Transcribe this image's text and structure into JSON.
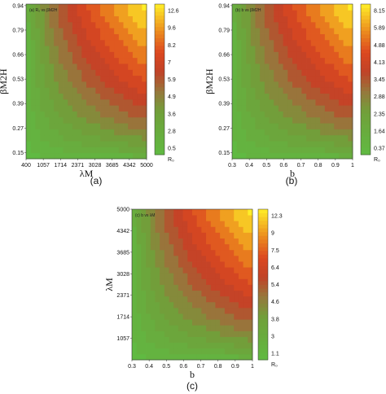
{
  "chart_data": [
    {
      "type": "heatmap",
      "panel_label": "(a)",
      "annotation": "(a) R₀ vs βM2H",
      "xlabel": "λM",
      "ylabel": "βM2H",
      "x_ticks": [
        "400",
        "1057",
        "1714",
        "2371",
        "3028",
        "3685",
        "4342",
        "5000"
      ],
      "y_ticks": [
        "0.15",
        "0.27",
        "0.39",
        "0.53",
        "0.66",
        "0.79",
        "0.94"
      ],
      "xlim": [
        400,
        5000
      ],
      "ylim": [
        0.15,
        0.94
      ],
      "colorbar_label": "R₀",
      "colorbar_ticks": [
        "0.5",
        "2.8",
        "3.6",
        "4.9",
        "5.9",
        "7",
        "8.2",
        "9.6",
        "12.6"
      ]
    },
    {
      "type": "heatmap",
      "panel_label": "(b)",
      "annotation": "(b) b vs βM2H",
      "xlabel": "b",
      "ylabel": "βM2H",
      "x_ticks": [
        "0.3",
        "0.4",
        "0.5",
        "0.6",
        "0.7",
        "0.8",
        "0.9",
        "1"
      ],
      "y_ticks": [
        "0.15",
        "0.27",
        "0.39",
        "0.53",
        "0.66",
        "0.79",
        "0.94"
      ],
      "xlim": [
        0.3,
        1
      ],
      "ylim": [
        0.15,
        0.94
      ],
      "colorbar_label": "R₀",
      "colorbar_ticks": [
        "0.37",
        "1.64",
        "2.35",
        "2.88",
        "3.45",
        "4.13",
        "4.88",
        "5.89",
        "8.15"
      ]
    },
    {
      "type": "heatmap",
      "panel_label": "(c)",
      "annotation": "(c) b vs λM",
      "xlabel": "b",
      "ylabel": "λM",
      "x_ticks": [
        "0.3",
        "0.4",
        "0.5",
        "0.6",
        "0.7",
        "0.8",
        "0.9",
        "1"
      ],
      "y_ticks": [
        "1057",
        "1714",
        "2371",
        "3028",
        "3685",
        "4342",
        "5000"
      ],
      "xlim": [
        0.3,
        1
      ],
      "ylim": [
        400,
        5000
      ],
      "colorbar_label": "R₀",
      "colorbar_ticks": [
        "1.1",
        "3",
        "3.8",
        "4.6",
        "5.4",
        "6.4",
        "7.5",
        "9",
        "12.3"
      ]
    }
  ]
}
